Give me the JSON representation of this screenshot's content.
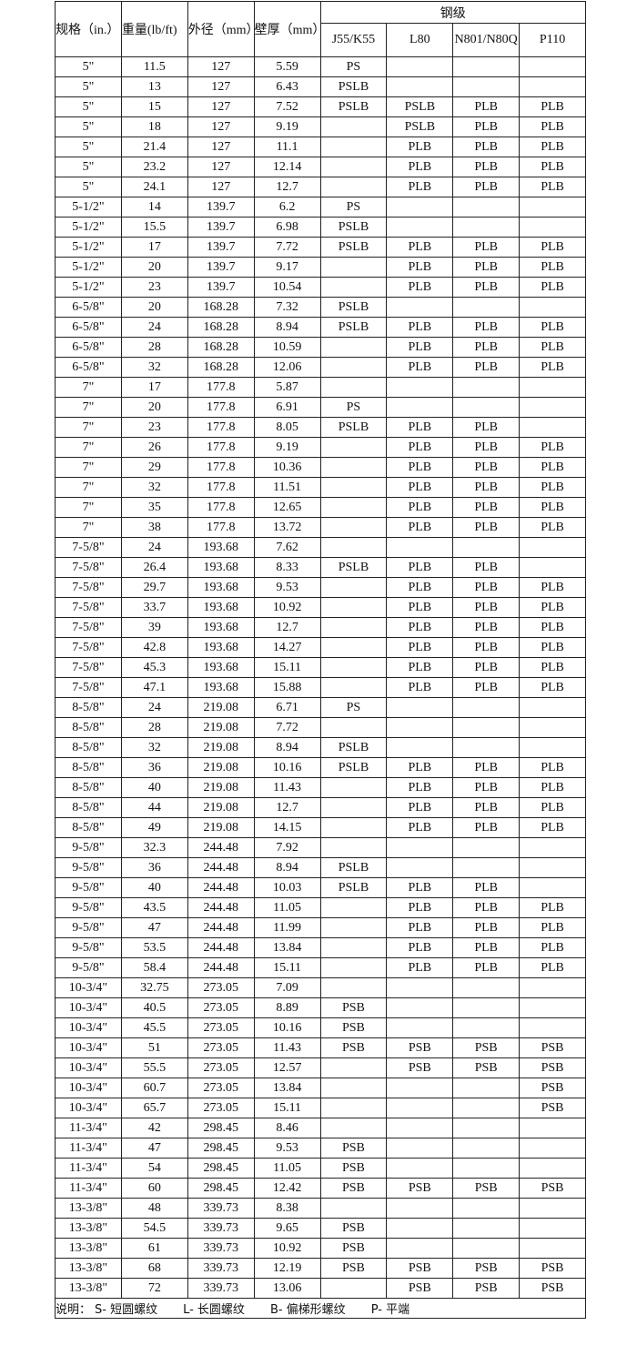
{
  "header": {
    "size": "规格（in.）",
    "weight": "重量(lb/ft)",
    "od": "外径（mm）",
    "wall": "壁厚（mm）",
    "steel_grade": "钢级",
    "grades": [
      "J55/K55",
      "L80",
      "N801/N80Q",
      "P110"
    ]
  },
  "rows": [
    [
      "5\"",
      "11.5",
      "127",
      "5.59",
      "PS",
      "",
      "",
      ""
    ],
    [
      "5\"",
      "13",
      "127",
      "6.43",
      "PSLB",
      "",
      "",
      ""
    ],
    [
      "5\"",
      "15",
      "127",
      "7.52",
      "PSLB",
      "PSLB",
      "PLB",
      "PLB"
    ],
    [
      "5\"",
      "18",
      "127",
      "9.19",
      "",
      "PSLB",
      "PLB",
      "PLB"
    ],
    [
      "5\"",
      "21.4",
      "127",
      "11.1",
      "",
      "PLB",
      "PLB",
      "PLB"
    ],
    [
      "5\"",
      "23.2",
      "127",
      "12.14",
      "",
      "PLB",
      "PLB",
      "PLB"
    ],
    [
      "5\"",
      "24.1",
      "127",
      "12.7",
      "",
      "PLB",
      "PLB",
      "PLB"
    ],
    [
      "5-1/2\"",
      "14",
      "139.7",
      "6.2",
      "PS",
      "",
      "",
      ""
    ],
    [
      "5-1/2\"",
      "15.5",
      "139.7",
      "6.98",
      "PSLB",
      "",
      "",
      ""
    ],
    [
      "5-1/2\"",
      "17",
      "139.7",
      "7.72",
      "PSLB",
      "PLB",
      "PLB",
      "PLB"
    ],
    [
      "5-1/2\"",
      "20",
      "139.7",
      "9.17",
      "",
      "PLB",
      "PLB",
      "PLB"
    ],
    [
      "5-1/2\"",
      "23",
      "139.7",
      "10.54",
      "",
      "PLB",
      "PLB",
      "PLB"
    ],
    [
      "6-5/8\"",
      "20",
      "168.28",
      "7.32",
      "PSLB",
      "",
      "",
      ""
    ],
    [
      "6-5/8\"",
      "24",
      "168.28",
      "8.94",
      "PSLB",
      "PLB",
      "PLB",
      "PLB"
    ],
    [
      "6-5/8\"",
      "28",
      "168.28",
      "10.59",
      "",
      "PLB",
      "PLB",
      "PLB"
    ],
    [
      "6-5/8\"",
      "32",
      "168.28",
      "12.06",
      "",
      "PLB",
      "PLB",
      "PLB"
    ],
    [
      "7\"",
      "17",
      "177.8",
      "5.87",
      "",
      "",
      "",
      ""
    ],
    [
      "7\"",
      "20",
      "177.8",
      "6.91",
      "PS",
      "",
      "",
      ""
    ],
    [
      "7\"",
      "23",
      "177.8",
      "8.05",
      "PSLB",
      "PLB",
      "PLB",
      ""
    ],
    [
      "7\"",
      "26",
      "177.8",
      "9.19",
      "",
      "PLB",
      "PLB",
      "PLB"
    ],
    [
      "7\"",
      "29",
      "177.8",
      "10.36",
      "",
      "PLB",
      "PLB",
      "PLB"
    ],
    [
      "7\"",
      "32",
      "177.8",
      "11.51",
      "",
      "PLB",
      "PLB",
      "PLB"
    ],
    [
      "7\"",
      "35",
      "177.8",
      "12.65",
      "",
      "PLB",
      "PLB",
      "PLB"
    ],
    [
      "7\"",
      "38",
      "177.8",
      "13.72",
      "",
      "PLB",
      "PLB",
      "PLB"
    ],
    [
      "7-5/8\"",
      "24",
      "193.68",
      "7.62",
      "",
      "",
      "",
      ""
    ],
    [
      "7-5/8\"",
      "26.4",
      "193.68",
      "8.33",
      "PSLB",
      "PLB",
      "PLB",
      ""
    ],
    [
      "7-5/8\"",
      "29.7",
      "193.68",
      "9.53",
      "",
      "PLB",
      "PLB",
      "PLB"
    ],
    [
      "7-5/8\"",
      "33.7",
      "193.68",
      "10.92",
      "",
      "PLB",
      "PLB",
      "PLB"
    ],
    [
      "7-5/8\"",
      "39",
      "193.68",
      "12.7",
      "",
      "PLB",
      "PLB",
      "PLB"
    ],
    [
      "7-5/8\"",
      "42.8",
      "193.68",
      "14.27",
      "",
      "PLB",
      "PLB",
      "PLB"
    ],
    [
      "7-5/8\"",
      "45.3",
      "193.68",
      "15.11",
      "",
      "PLB",
      "PLB",
      "PLB"
    ],
    [
      "7-5/8\"",
      "47.1",
      "193.68",
      "15.88",
      "",
      "PLB",
      "PLB",
      "PLB"
    ],
    [
      "8-5/8\"",
      "24",
      "219.08",
      "6.71",
      "PS",
      "",
      "",
      ""
    ],
    [
      "8-5/8\"",
      "28",
      "219.08",
      "7.72",
      "",
      "",
      "",
      ""
    ],
    [
      "8-5/8\"",
      "32",
      "219.08",
      "8.94",
      "PSLB",
      "",
      "",
      ""
    ],
    [
      "8-5/8\"",
      "36",
      "219.08",
      "10.16",
      "PSLB",
      "PLB",
      "PLB",
      "PLB"
    ],
    [
      "8-5/8\"",
      "40",
      "219.08",
      "11.43",
      "",
      "PLB",
      "PLB",
      "PLB"
    ],
    [
      "8-5/8\"",
      "44",
      "219.08",
      "12.7",
      "",
      "PLB",
      "PLB",
      "PLB"
    ],
    [
      "8-5/8\"",
      "49",
      "219.08",
      "14.15",
      "",
      "PLB",
      "PLB",
      "PLB"
    ],
    [
      "9-5/8\"",
      "32.3",
      "244.48",
      "7.92",
      "",
      "",
      "",
      ""
    ],
    [
      "9-5/8\"",
      "36",
      "244.48",
      "8.94",
      "PSLB",
      "",
      "",
      ""
    ],
    [
      "9-5/8\"",
      "40",
      "244.48",
      "10.03",
      "PSLB",
      "PLB",
      "PLB",
      ""
    ],
    [
      "9-5/8\"",
      "43.5",
      "244.48",
      "11.05",
      "",
      "PLB",
      "PLB",
      "PLB"
    ],
    [
      "9-5/8\"",
      "47",
      "244.48",
      "11.99",
      "",
      "PLB",
      "PLB",
      "PLB"
    ],
    [
      "9-5/8\"",
      "53.5",
      "244.48",
      "13.84",
      "",
      "PLB",
      "PLB",
      "PLB"
    ],
    [
      "9-5/8\"",
      "58.4",
      "244.48",
      "15.11",
      "",
      "PLB",
      "PLB",
      "PLB"
    ],
    [
      "10-3/4\"",
      "32.75",
      "273.05",
      "7.09",
      "",
      "",
      "",
      ""
    ],
    [
      "10-3/4\"",
      "40.5",
      "273.05",
      "8.89",
      "PSB",
      "",
      "",
      ""
    ],
    [
      "10-3/4\"",
      "45.5",
      "273.05",
      "10.16",
      "PSB",
      "",
      "",
      ""
    ],
    [
      "10-3/4\"",
      "51",
      "273.05",
      "11.43",
      "PSB",
      "PSB",
      "PSB",
      "PSB"
    ],
    [
      "10-3/4\"",
      "55.5",
      "273.05",
      "12.57",
      "",
      "PSB",
      "PSB",
      "PSB"
    ],
    [
      "10-3/4\"",
      "60.7",
      "273.05",
      "13.84",
      "",
      "",
      "",
      "PSB"
    ],
    [
      "10-3/4\"",
      "65.7",
      "273.05",
      "15.11",
      "",
      "",
      "",
      "PSB"
    ],
    [
      "11-3/4\"",
      "42",
      "298.45",
      "8.46",
      "",
      "",
      "",
      ""
    ],
    [
      "11-3/4\"",
      "47",
      "298.45",
      "9.53",
      "PSB",
      "",
      "",
      ""
    ],
    [
      "11-3/4\"",
      "54",
      "298.45",
      "11.05",
      "PSB",
      "",
      "",
      ""
    ],
    [
      "11-3/4\"",
      "60",
      "298.45",
      "12.42",
      "PSB",
      "PSB",
      "PSB",
      "PSB"
    ],
    [
      "13-3/8\"",
      "48",
      "339.73",
      "8.38",
      "",
      "",
      "",
      ""
    ],
    [
      "13-3/8\"",
      "54.5",
      "339.73",
      "9.65",
      "PSB",
      "",
      "",
      ""
    ],
    [
      "13-3/8\"",
      "61",
      "339.73",
      "10.92",
      "PSB",
      "",
      "",
      ""
    ],
    [
      "13-3/8\"",
      "68",
      "339.73",
      "12.19",
      "PSB",
      "PSB",
      "PSB",
      "PSB"
    ],
    [
      "13-3/8\"",
      "72",
      "339.73",
      "13.06",
      "",
      "PSB",
      "PSB",
      "PSB"
    ]
  ],
  "note": {
    "label": "说明：",
    "items": [
      "S- 短圆螺纹",
      "L- 长圆螺纹",
      "B- 偏梯形螺纹",
      "P- 平端"
    ]
  }
}
